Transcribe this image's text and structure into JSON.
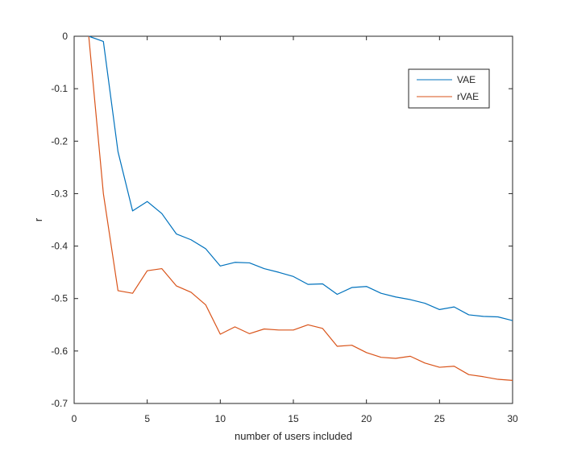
{
  "chart_data": {
    "type": "line",
    "title": "",
    "xlabel": "number of users included",
    "ylabel": "r",
    "xlim": [
      0,
      30
    ],
    "ylim": [
      -0.7,
      0
    ],
    "xticks": [
      0,
      5,
      10,
      15,
      20,
      25,
      30
    ],
    "xtick_labels": [
      "0",
      "5",
      "10",
      "15",
      "20",
      "25",
      "30"
    ],
    "yticks": [
      0,
      -0.1,
      -0.2,
      -0.3,
      -0.4,
      -0.5,
      -0.6,
      -0.7
    ],
    "ytick_labels": [
      "0",
      "-0.1",
      "-0.2",
      "-0.3",
      "-0.4",
      "-0.5",
      "-0.6",
      "-0.7"
    ],
    "grid": false,
    "legend_position": "top-right",
    "x": [
      1,
      2,
      3,
      4,
      5,
      6,
      7,
      8,
      9,
      10,
      11,
      12,
      13,
      14,
      15,
      16,
      17,
      18,
      19,
      20,
      21,
      22,
      23,
      24,
      25,
      26,
      27,
      28,
      29,
      30
    ],
    "series": [
      {
        "name": "VAE",
        "color": "#0072BD",
        "values": [
          0,
          -0.01,
          -0.22,
          -0.333,
          -0.315,
          -0.338,
          -0.377,
          -0.388,
          -0.405,
          -0.438,
          -0.431,
          -0.432,
          -0.443,
          -0.45,
          -0.458,
          -0.473,
          -0.472,
          -0.492,
          -0.479,
          -0.477,
          -0.49,
          -0.497,
          -0.502,
          -0.509,
          -0.521,
          -0.516,
          -0.531,
          -0.534,
          -0.535,
          -0.542
        ]
      },
      {
        "name": "rVAE",
        "color": "#D95319",
        "values": [
          0,
          -0.3,
          -0.485,
          -0.49,
          -0.447,
          -0.443,
          -0.476,
          -0.488,
          -0.512,
          -0.568,
          -0.554,
          -0.567,
          -0.558,
          -0.56,
          -0.56,
          -0.55,
          -0.557,
          -0.591,
          -0.589,
          -0.603,
          -0.612,
          -0.614,
          -0.61,
          -0.623,
          -0.631,
          -0.629,
          -0.645,
          -0.649,
          -0.654,
          -0.656
        ]
      }
    ]
  }
}
